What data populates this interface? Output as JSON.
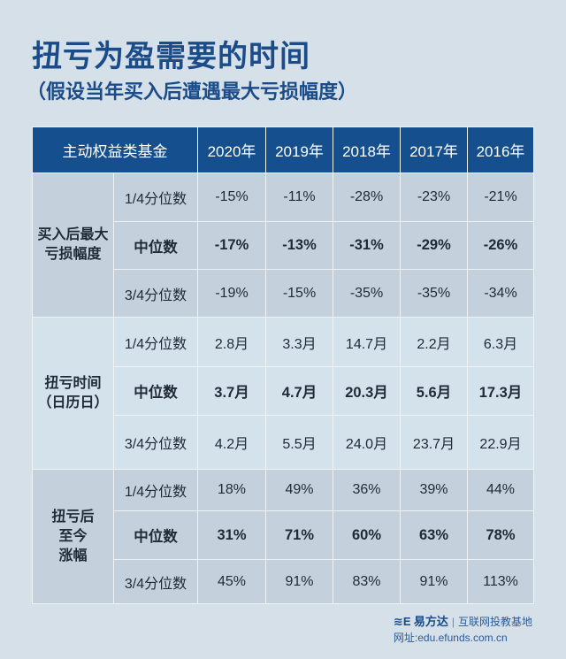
{
  "title": "扭亏为盈需要的时间",
  "subtitle": "（假设当年买入后遭遇最大亏损幅度）",
  "table": {
    "corner": "主动权益类基金",
    "years": [
      "2020年",
      "2019年",
      "2018年",
      "2017年",
      "2016年"
    ],
    "sections": [
      {
        "label": "买入后最大亏损幅度",
        "label_lines": [
          "买入后最大",
          "亏损幅度"
        ],
        "rows": [
          {
            "label": "1/4分位数",
            "values": [
              "-15%",
              "-11%",
              "-28%",
              "-23%",
              "-21%"
            ]
          },
          {
            "label": "中位数",
            "values": [
              "-17%",
              "-13%",
              "-31%",
              "-29%",
              "-26%"
            ]
          },
          {
            "label": "3/4分位数",
            "values": [
              "-19%",
              "-15%",
              "-35%",
              "-35%",
              "-34%"
            ]
          }
        ]
      },
      {
        "label": "扭亏时间（日历日）",
        "label_lines": [
          "扭亏时间",
          "（日历日）"
        ],
        "rows": [
          {
            "label": "1/4分位数",
            "values": [
              "2.8月",
              "3.3月",
              "14.7月",
              "2.2月",
              "6.3月"
            ]
          },
          {
            "label": "中位数",
            "values": [
              "3.7月",
              "4.7月",
              "20.3月",
              "5.6月",
              "17.3月"
            ]
          },
          {
            "label": "3/4分位数",
            "values": [
              "4.2月",
              "5.5月",
              "24.0月",
              "23.7月",
              "22.9月"
            ]
          }
        ]
      },
      {
        "label": "扭亏后至今涨幅",
        "label_lines": [
          "扭亏后",
          "至今",
          "涨幅"
        ],
        "rows": [
          {
            "label": "1/4分位数",
            "values": [
              "18%",
              "49%",
              "36%",
              "39%",
              "44%"
            ]
          },
          {
            "label": "中位数",
            "values": [
              "31%",
              "71%",
              "60%",
              "63%",
              "78%"
            ]
          },
          {
            "label": "3/4分位数",
            "values": [
              "45%",
              "91%",
              "83%",
              "91%",
              "113%"
            ]
          }
        ]
      }
    ]
  },
  "footer": {
    "brand": "易方达",
    "tagline": "互联网投教基地",
    "website": "网址:edu.efunds.com.cn",
    "logo_icon": "efunds-logo-icon"
  },
  "colors": {
    "accent": "#1b4c8a",
    "header_bg": "#154f8e",
    "background": "#d5e0e9",
    "section_dark": "#c4d1dc",
    "section_light": "#d3e2eb"
  }
}
